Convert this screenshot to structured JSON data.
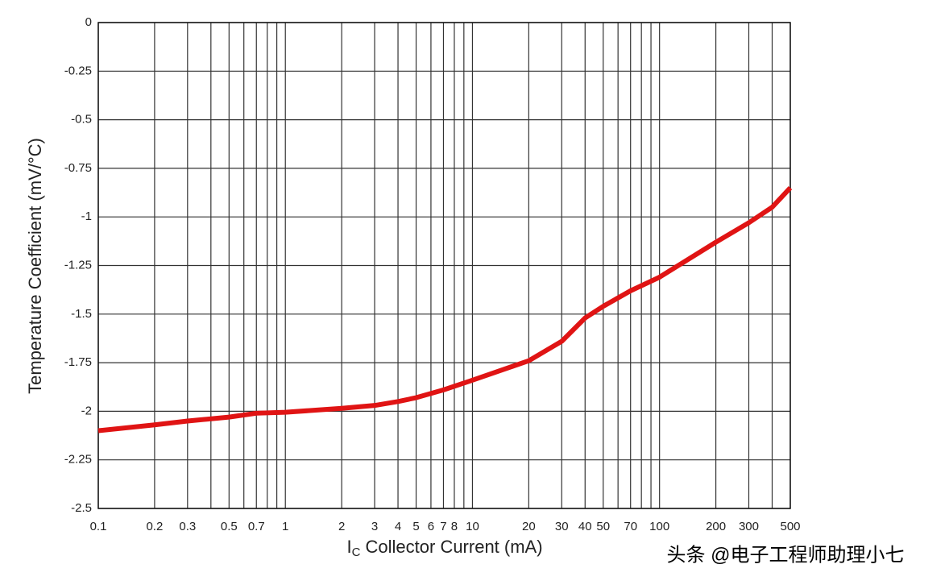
{
  "chart_data": {
    "type": "line",
    "x_label": {
      "main": "I",
      "sub": "C",
      "rest": " Collector Current (mA)"
    },
    "y_label": "Temperature Coefficient (mV/°C)",
    "x": [
      0.1,
      0.2,
      0.3,
      0.5,
      0.7,
      1,
      2,
      3,
      4,
      5,
      7,
      10,
      20,
      30,
      40,
      50,
      70,
      100,
      200,
      300,
      400,
      500
    ],
    "series": [
      {
        "color": "#e01414",
        "values": [
          -2.1,
          -2.07,
          -2.05,
          -2.03,
          -2.01,
          -2.005,
          -1.985,
          -1.97,
          -1.95,
          -1.93,
          -1.89,
          -1.84,
          -1.74,
          -1.64,
          -1.52,
          -1.46,
          -1.38,
          -1.31,
          -1.13,
          -1.03,
          -0.95,
          -0.85
        ]
      }
    ],
    "xscale": "log",
    "xlim": [
      0.1,
      500
    ],
    "xticks": [
      0.1,
      0.2,
      0.3,
      0.5,
      0.7,
      1,
      2,
      3,
      4,
      5,
      6,
      7,
      8,
      10,
      20,
      30,
      40,
      50,
      70,
      100,
      200,
      300,
      500
    ],
    "xminor": [
      0.4,
      0.6,
      0.8,
      0.9,
      9,
      60,
      80,
      90,
      400
    ],
    "ylim": [
      -2.5,
      0
    ],
    "yticks": [
      0,
      -0.25,
      -0.5,
      -0.75,
      -1,
      -1.25,
      -1.5,
      -1.75,
      -2,
      -2.25,
      -2.5
    ],
    "grid": true,
    "watermark": "头条 @电子工程师助理小七"
  }
}
